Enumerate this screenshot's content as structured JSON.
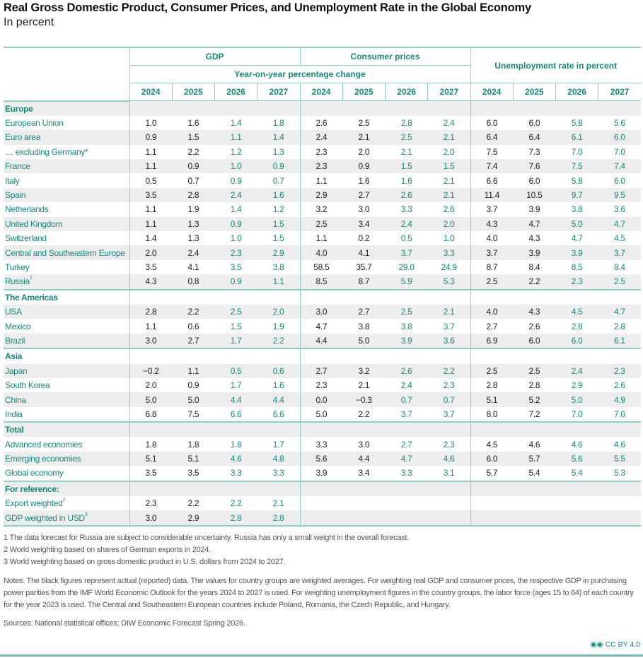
{
  "title": "Real Gross Domestic Product, Consumer Prices, and Unemployment Rate in the Global Economy",
  "subtitle": "In percent",
  "colors": {
    "accent": "#16897f",
    "forecast": "#16897f",
    "actual": "#222222",
    "rule": "#8fcfc9",
    "stripe": "#ededed"
  },
  "header": {
    "groups": [
      "GDP",
      "Consumer prices",
      "Unemployment rate in percent"
    ],
    "sub": "Year-on-year percentage change",
    "years": [
      "2024",
      "2025",
      "2026",
      "2027"
    ],
    "forecast_years": [
      "2026",
      "2027"
    ]
  },
  "sections": [
    {
      "label": "Europe",
      "rows": [
        {
          "label": "European Union",
          "values": [
            "1.0",
            "1.6",
            "1.4",
            "1.8",
            "2.6",
            "2.5",
            "2.8",
            "2.4",
            "6.0",
            "6.0",
            "5.8",
            "5.6"
          ]
        },
        {
          "label": "Euro area",
          "values": [
            "0.9",
            "1.5",
            "1.1",
            "1.4",
            "2.4",
            "2.1",
            "2.5",
            "2.1",
            "6.4",
            "6.4",
            "6.1",
            "6.0"
          ]
        },
        {
          "label": "… excluding Germany*",
          "values": [
            "1.1",
            "2.2",
            "1.2",
            "1.3",
            "2.3",
            "2.0",
            "2.1",
            "2.0",
            "7.5",
            "7.3",
            "7.0",
            "7.0"
          ]
        },
        {
          "label": "France",
          "values": [
            "1.1",
            "0.9",
            "1.0",
            "0.9",
            "2.3",
            "0.9",
            "1.5",
            "1.5",
            "7.4",
            "7.6",
            "7.5",
            "7.4"
          ]
        },
        {
          "label": "Italy",
          "values": [
            "0.5",
            "0.7",
            "0.9",
            "0.7",
            "1.1",
            "1.6",
            "1.6",
            "2.1",
            "6.6",
            "6.0",
            "5.8",
            "6.0"
          ]
        },
        {
          "label": "Spain",
          "values": [
            "3.5",
            "2.8",
            "2.4",
            "1.6",
            "2.9",
            "2.7",
            "2.6",
            "2.1",
            "11.4",
            "10.5",
            "9.7",
            "9.5"
          ]
        },
        {
          "label": "Netherlands",
          "values": [
            "1.1",
            "1.9",
            "1.4",
            "1.2",
            "3.2",
            "3.0",
            "3.3",
            "2.6",
            "3.7",
            "3.9",
            "3.8",
            "3.6"
          ]
        },
        {
          "label": "United Kingdom",
          "values": [
            "1.1",
            "1.3",
            "0.9",
            "1.5",
            "2.5",
            "3.4",
            "2.4",
            "2.0",
            "4.3",
            "4.7",
            "5.0",
            "4.7"
          ]
        },
        {
          "label": "Switzerland",
          "values": [
            "1.4",
            "1.3",
            "1.0",
            "1.5",
            "1.1",
            "0.2",
            "0.5",
            "1.0",
            "4.0",
            "4.3",
            "4.7",
            "4.5"
          ]
        },
        {
          "label": "Central and Southeastern Europe",
          "values": [
            "2.0",
            "2.4",
            "2.3",
            "2.9",
            "4.0",
            "4.1",
            "3.7",
            "3.3",
            "3.7",
            "3.9",
            "3.9",
            "3.7"
          ]
        },
        {
          "label": "Turkey",
          "values": [
            "3.5",
            "4.1",
            "3.5",
            "3.8",
            "58.5",
            "35.7",
            "29.0",
            "24.9",
            "8.7",
            "8.4",
            "8.5",
            "8.4"
          ]
        },
        {
          "label": "Russia",
          "sup": "1",
          "values": [
            "4.3",
            "0.8",
            "0.9",
            "1.1",
            "8.5",
            "8.7",
            "5.9",
            "5.3",
            "2.5",
            "2.2",
            "2.3",
            "2.5"
          ]
        }
      ]
    },
    {
      "label": "The Americas",
      "rows": [
        {
          "label": "USA",
          "values": [
            "2.8",
            "2.2",
            "2.5",
            "2.0",
            "3.0",
            "2.7",
            "2.5",
            "2.1",
            "4.0",
            "4.3",
            "4.5",
            "4.7"
          ]
        },
        {
          "label": "Mexico",
          "values": [
            "1.1",
            "0.6",
            "1.5",
            "1.9",
            "4.7",
            "3.8",
            "3.8",
            "3.7",
            "2.7",
            "2.6",
            "2.8",
            "2.8"
          ]
        },
        {
          "label": "Brazil",
          "values": [
            "3.0",
            "2.7",
            "1.7",
            "2.2",
            "4.4",
            "5.0",
            "3.9",
            "3.6",
            "6.9",
            "6.0",
            "6.0",
            "6.1"
          ]
        }
      ]
    },
    {
      "label": "Asia",
      "rows": [
        {
          "label": "Japan",
          "values": [
            "−0.2",
            "1.1",
            "0.5",
            "0.6",
            "2.7",
            "3.2",
            "2.6",
            "2.2",
            "2.5",
            "2.5",
            "2.4",
            "2.3"
          ]
        },
        {
          "label": "South Korea",
          "values": [
            "2.0",
            "0.9",
            "1.7",
            "1.6",
            "2.3",
            "2.1",
            "2.4",
            "2.3",
            "2.8",
            "2.8",
            "2.9",
            "2.6"
          ]
        },
        {
          "label": "China",
          "values": [
            "5.0",
            "5.0",
            "4.4",
            "4.4",
            "0.0",
            "−0.3",
            "0.7",
            "0.7",
            "5.1",
            "5.2",
            "5.0",
            "4.9"
          ]
        },
        {
          "label": "India",
          "values": [
            "6.8",
            "7.5",
            "6.6",
            "6.6",
            "5.0",
            "2.2",
            "3.7",
            "3.7",
            "8.0",
            "7.2",
            "7.0",
            "7.0"
          ]
        }
      ]
    },
    {
      "label": "Total",
      "rows": [
        {
          "label": "Advanced economies",
          "values": [
            "1.8",
            "1.8",
            "1.8",
            "1.7",
            "3.3",
            "3.0",
            "2.7",
            "2.3",
            "4.5",
            "4.6",
            "4.6",
            "4.6"
          ]
        },
        {
          "label": "Emerging economies",
          "values": [
            "5.1",
            "5.1",
            "4.6",
            "4.8",
            "5.6",
            "4.4",
            "4.7",
            "4.6",
            "6.0",
            "5.7",
            "5.6",
            "5.5"
          ]
        },
        {
          "label": "Global economy",
          "values": [
            "3.5",
            "3.5",
            "3.3",
            "3.3",
            "3.9",
            "3.4",
            "3.3",
            "3.1",
            "5.7",
            "5.4",
            "5.4",
            "5.3"
          ]
        }
      ]
    },
    {
      "label": "For reference:",
      "rows": [
        {
          "label": "Export weighted",
          "sup": "2",
          "values": [
            "2.3",
            "2.2",
            "2.2",
            "2.1",
            null,
            null,
            null,
            null,
            null,
            null,
            null,
            null
          ]
        },
        {
          "label": "GDP weighted in USD",
          "sup": "3",
          "values": [
            "3.0",
            "2.9",
            "2.8",
            "2.8",
            null,
            null,
            null,
            null,
            null,
            null,
            null,
            null
          ]
        }
      ]
    }
  ],
  "footnotes": [
    "1  The data forecast for Russia are subject to considerable uncertainty. Russia has only a small weight in the overall forecast.",
    "2  World weighting based on shares of German exports in 2024.",
    "3  World weighting based on gross domestic product in U.S. dollars from 2024 to 2027."
  ],
  "notes": "Notes: The black figures represent actual (reported) data. The values for country groups are weighted averages. For weighting real GDP and consumer prices, the respective GDP in purchasing power parities from the IMF World Economic Outlook for the years 2024 to 2027 is used. For weighting unemployment figures in the country groups, the labor force (ages 15 to 64) of each country for the year 2023 is used. The Central and Southeastern European countries include Poland, Romania, the Czech Republic, and Hungary.",
  "sources": "Sources: National statistical offices; DIW Economic Forecast Spring 2026.",
  "license": "CC BY 4.0"
}
